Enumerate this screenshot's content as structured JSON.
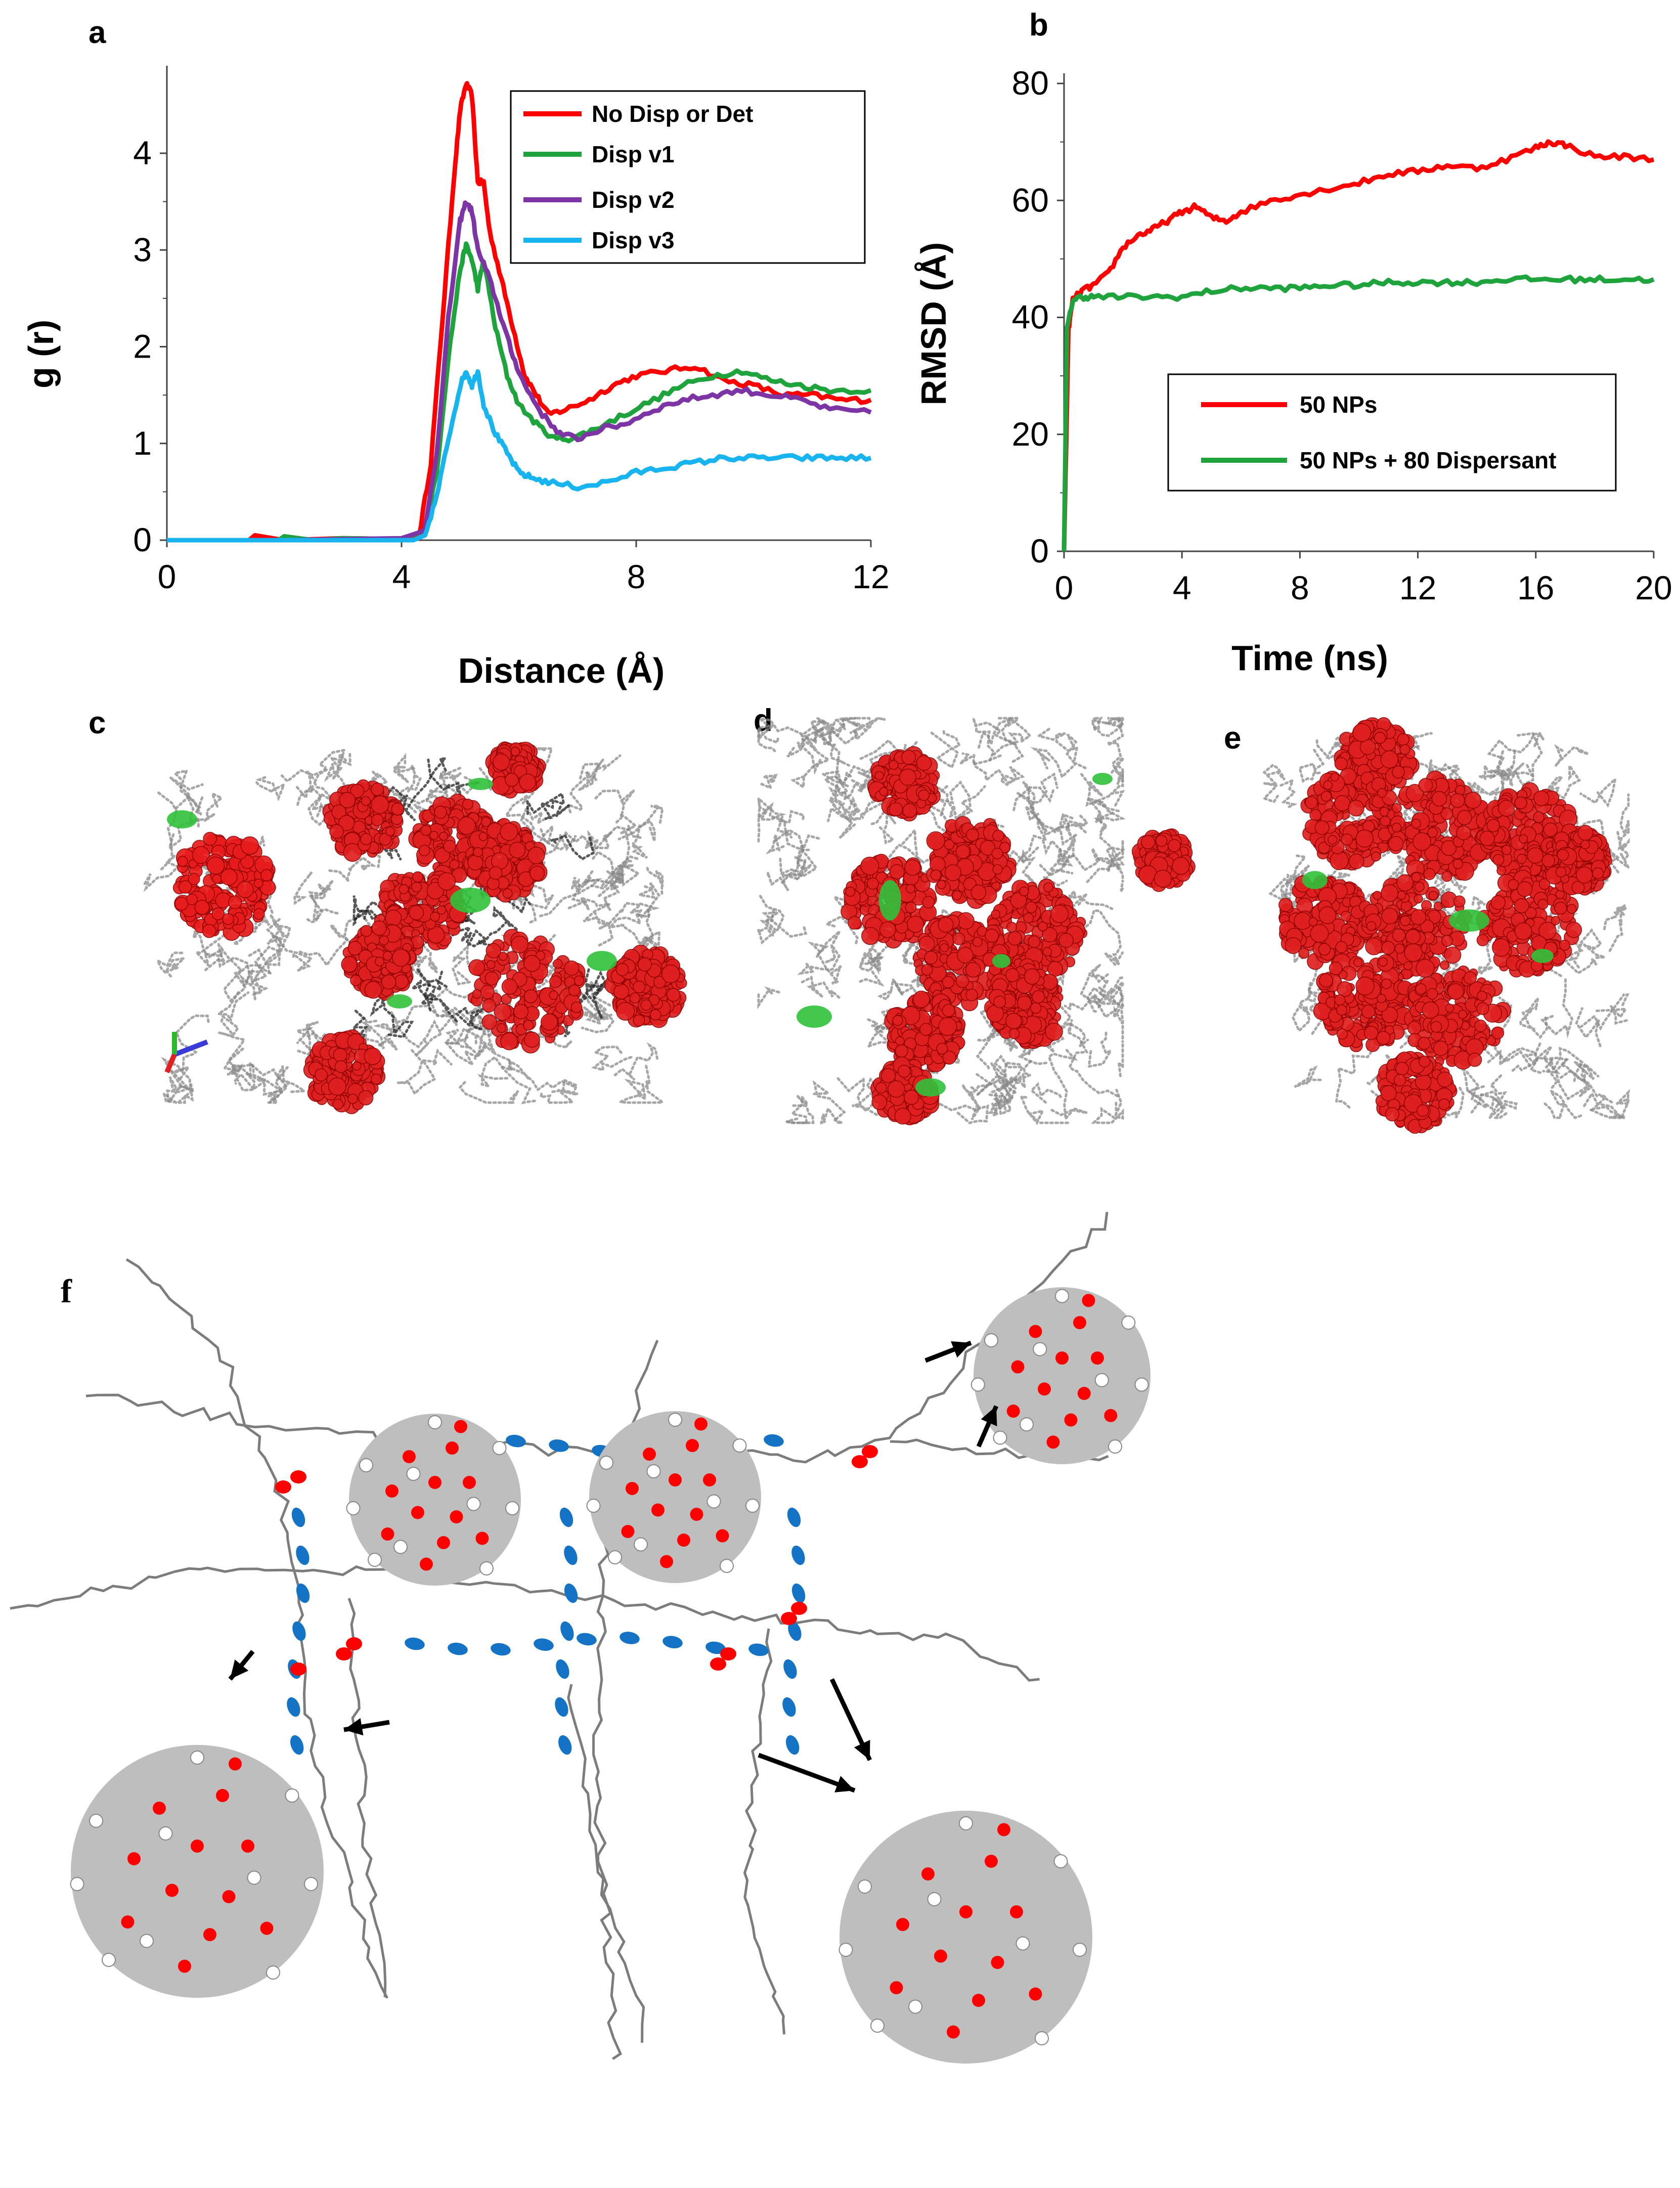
{
  "panel_labels": {
    "a": "a",
    "b": "b",
    "c": "c",
    "d": "d",
    "e": "e",
    "f": "f"
  },
  "colors": {
    "red": "#ff0000",
    "green": "#1fa33c",
    "purple": "#7d35a6",
    "cyan": "#18b4f0",
    "grey_chain": "#7c7c7c",
    "np_grey": "#bebebe",
    "blue_bead": "#1473c4"
  },
  "chart_data": [
    {
      "id": "a",
      "type": "line",
      "title": "",
      "xlabel": "Distance (Å)",
      "ylabel": "g (r)",
      "xlim": [
        0,
        12
      ],
      "ylim": [
        0,
        4.8
      ],
      "xticks": [
        0,
        4,
        8,
        12
      ],
      "yticks": [
        0,
        1,
        2,
        3,
        4
      ],
      "legend_position": "top-right",
      "series": [
        {
          "name": "No Disp or Det",
          "color": "#ff0000",
          "x": [
            0,
            1.4,
            1.5,
            2,
            3,
            4,
            4.3,
            4.5,
            4.7,
            4.9,
            5.0,
            5.1,
            5.2,
            5.3,
            5.4,
            5.5,
            5.7,
            5.9,
            6.1,
            6.3,
            6.5,
            6.8,
            7.2,
            7.6,
            8.0,
            8.5,
            9.0,
            9.5,
            10,
            10.5,
            11,
            11.5,
            12
          ],
          "y": [
            0,
            0,
            0.05,
            0,
            0.02,
            0.01,
            0.05,
            0.8,
            2.3,
            3.8,
            4.45,
            4.72,
            4.6,
            3.7,
            3.7,
            3.2,
            2.7,
            2.2,
            1.7,
            1.5,
            1.3,
            1.35,
            1.45,
            1.6,
            1.7,
            1.75,
            1.8,
            1.65,
            1.6,
            1.5,
            1.5,
            1.45,
            1.45
          ]
        },
        {
          "name": "Disp v1",
          "color": "#1fa33c",
          "x": [
            0,
            1.9,
            2,
            2.5,
            3,
            4,
            4.4,
            4.6,
            4.8,
            5.0,
            5.1,
            5.2,
            5.3,
            5.4,
            5.6,
            5.8,
            6.0,
            6.3,
            6.6,
            6.9,
            7.3,
            7.8,
            8.3,
            8.8,
            9.3,
            9.8,
            10.3,
            10.8,
            11.3,
            12
          ],
          "y": [
            0,
            0,
            0.04,
            0,
            0.02,
            0.01,
            0.1,
            0.7,
            1.9,
            2.8,
            3.05,
            2.9,
            2.6,
            2.9,
            2.2,
            1.7,
            1.4,
            1.2,
            1.05,
            1.05,
            1.15,
            1.3,
            1.45,
            1.6,
            1.7,
            1.75,
            1.65,
            1.6,
            1.55,
            1.55
          ]
        },
        {
          "name": "Disp v2",
          "color": "#7d35a6",
          "x": [
            0,
            2,
            3,
            4,
            4.4,
            4.6,
            4.8,
            5.0,
            5.1,
            5.2,
            5.3,
            5.5,
            5.7,
            5.9,
            6.1,
            6.4,
            6.7,
            7.0,
            7.4,
            7.8,
            8.3,
            8.8,
            9.3,
            9.8,
            10.3,
            10.8,
            11.3,
            12
          ],
          "y": [
            0,
            0,
            0.01,
            0.02,
            0.1,
            0.9,
            2.3,
            3.3,
            3.5,
            3.4,
            3.0,
            2.7,
            2.3,
            1.9,
            1.6,
            1.3,
            1.1,
            1.05,
            1.15,
            1.2,
            1.35,
            1.45,
            1.5,
            1.55,
            1.5,
            1.45,
            1.35,
            1.32
          ]
        },
        {
          "name": "Disp v3",
          "color": "#18b4f0",
          "x": [
            0,
            4.2,
            4.4,
            4.6,
            4.8,
            5.0,
            5.1,
            5.2,
            5.3,
            5.4,
            5.6,
            5.8,
            6.0,
            6.2,
            6.5,
            7.0,
            7.5,
            8.0,
            8.5,
            9.0,
            9.5,
            10.0,
            10.5,
            11.0,
            11.5,
            12
          ],
          "y": [
            0,
            0,
            0.05,
            0.45,
            1.05,
            1.6,
            1.75,
            1.6,
            1.75,
            1.4,
            1.1,
            0.9,
            0.7,
            0.65,
            0.6,
            0.55,
            0.6,
            0.7,
            0.75,
            0.8,
            0.85,
            0.85,
            0.85,
            0.85,
            0.85,
            0.85
          ]
        }
      ]
    },
    {
      "id": "b",
      "type": "line",
      "title": "",
      "xlabel": "Time (ns)",
      "ylabel": "RMSD (Å)",
      "xlim": [
        0,
        20
      ],
      "ylim": [
        0,
        80
      ],
      "xticks": [
        0,
        4,
        8,
        12,
        16,
        20
      ],
      "yticks": [
        0,
        20,
        40,
        60,
        80
      ],
      "legend_position": "bottom-right",
      "series": [
        {
          "name": "50 NPs",
          "color": "#ff0000",
          "x": [
            0,
            0.15,
            0.3,
            0.6,
            1,
            1.5,
            2,
            2.5,
            3,
            3.5,
            4,
            4.5,
            5,
            5.5,
            6,
            7,
            8,
            9,
            10,
            11,
            12,
            13,
            14,
            15,
            16,
            16.5,
            17,
            18,
            19,
            20
          ],
          "y": [
            0,
            38,
            43,
            44.5,
            45.5,
            47.5,
            52,
            54,
            55,
            56.5,
            58,
            59,
            57,
            56.5,
            58,
            60,
            61,
            62,
            63,
            64.5,
            65,
            66,
            65.5,
            67,
            69,
            70,
            69.5,
            67.5,
            67.5,
            67
          ]
        },
        {
          "name": "50 NPs + 80 Dispersant",
          "color": "#1fa33c",
          "x": [
            0,
            0.1,
            0.3,
            0.6,
            1,
            2,
            3,
            4,
            5,
            6,
            7,
            8,
            9,
            10,
            11,
            12,
            13,
            14,
            15,
            16,
            17,
            18,
            19,
            20
          ],
          "y": [
            0,
            38,
            43,
            43.5,
            43.5,
            43.5,
            43.5,
            43.5,
            44.5,
            45,
            45,
            45,
            45.5,
            45.5,
            46,
            46,
            46,
            46,
            46.5,
            46.5,
            46.5,
            46.5,
            46.5,
            46.5
          ]
        }
      ]
    }
  ]
}
